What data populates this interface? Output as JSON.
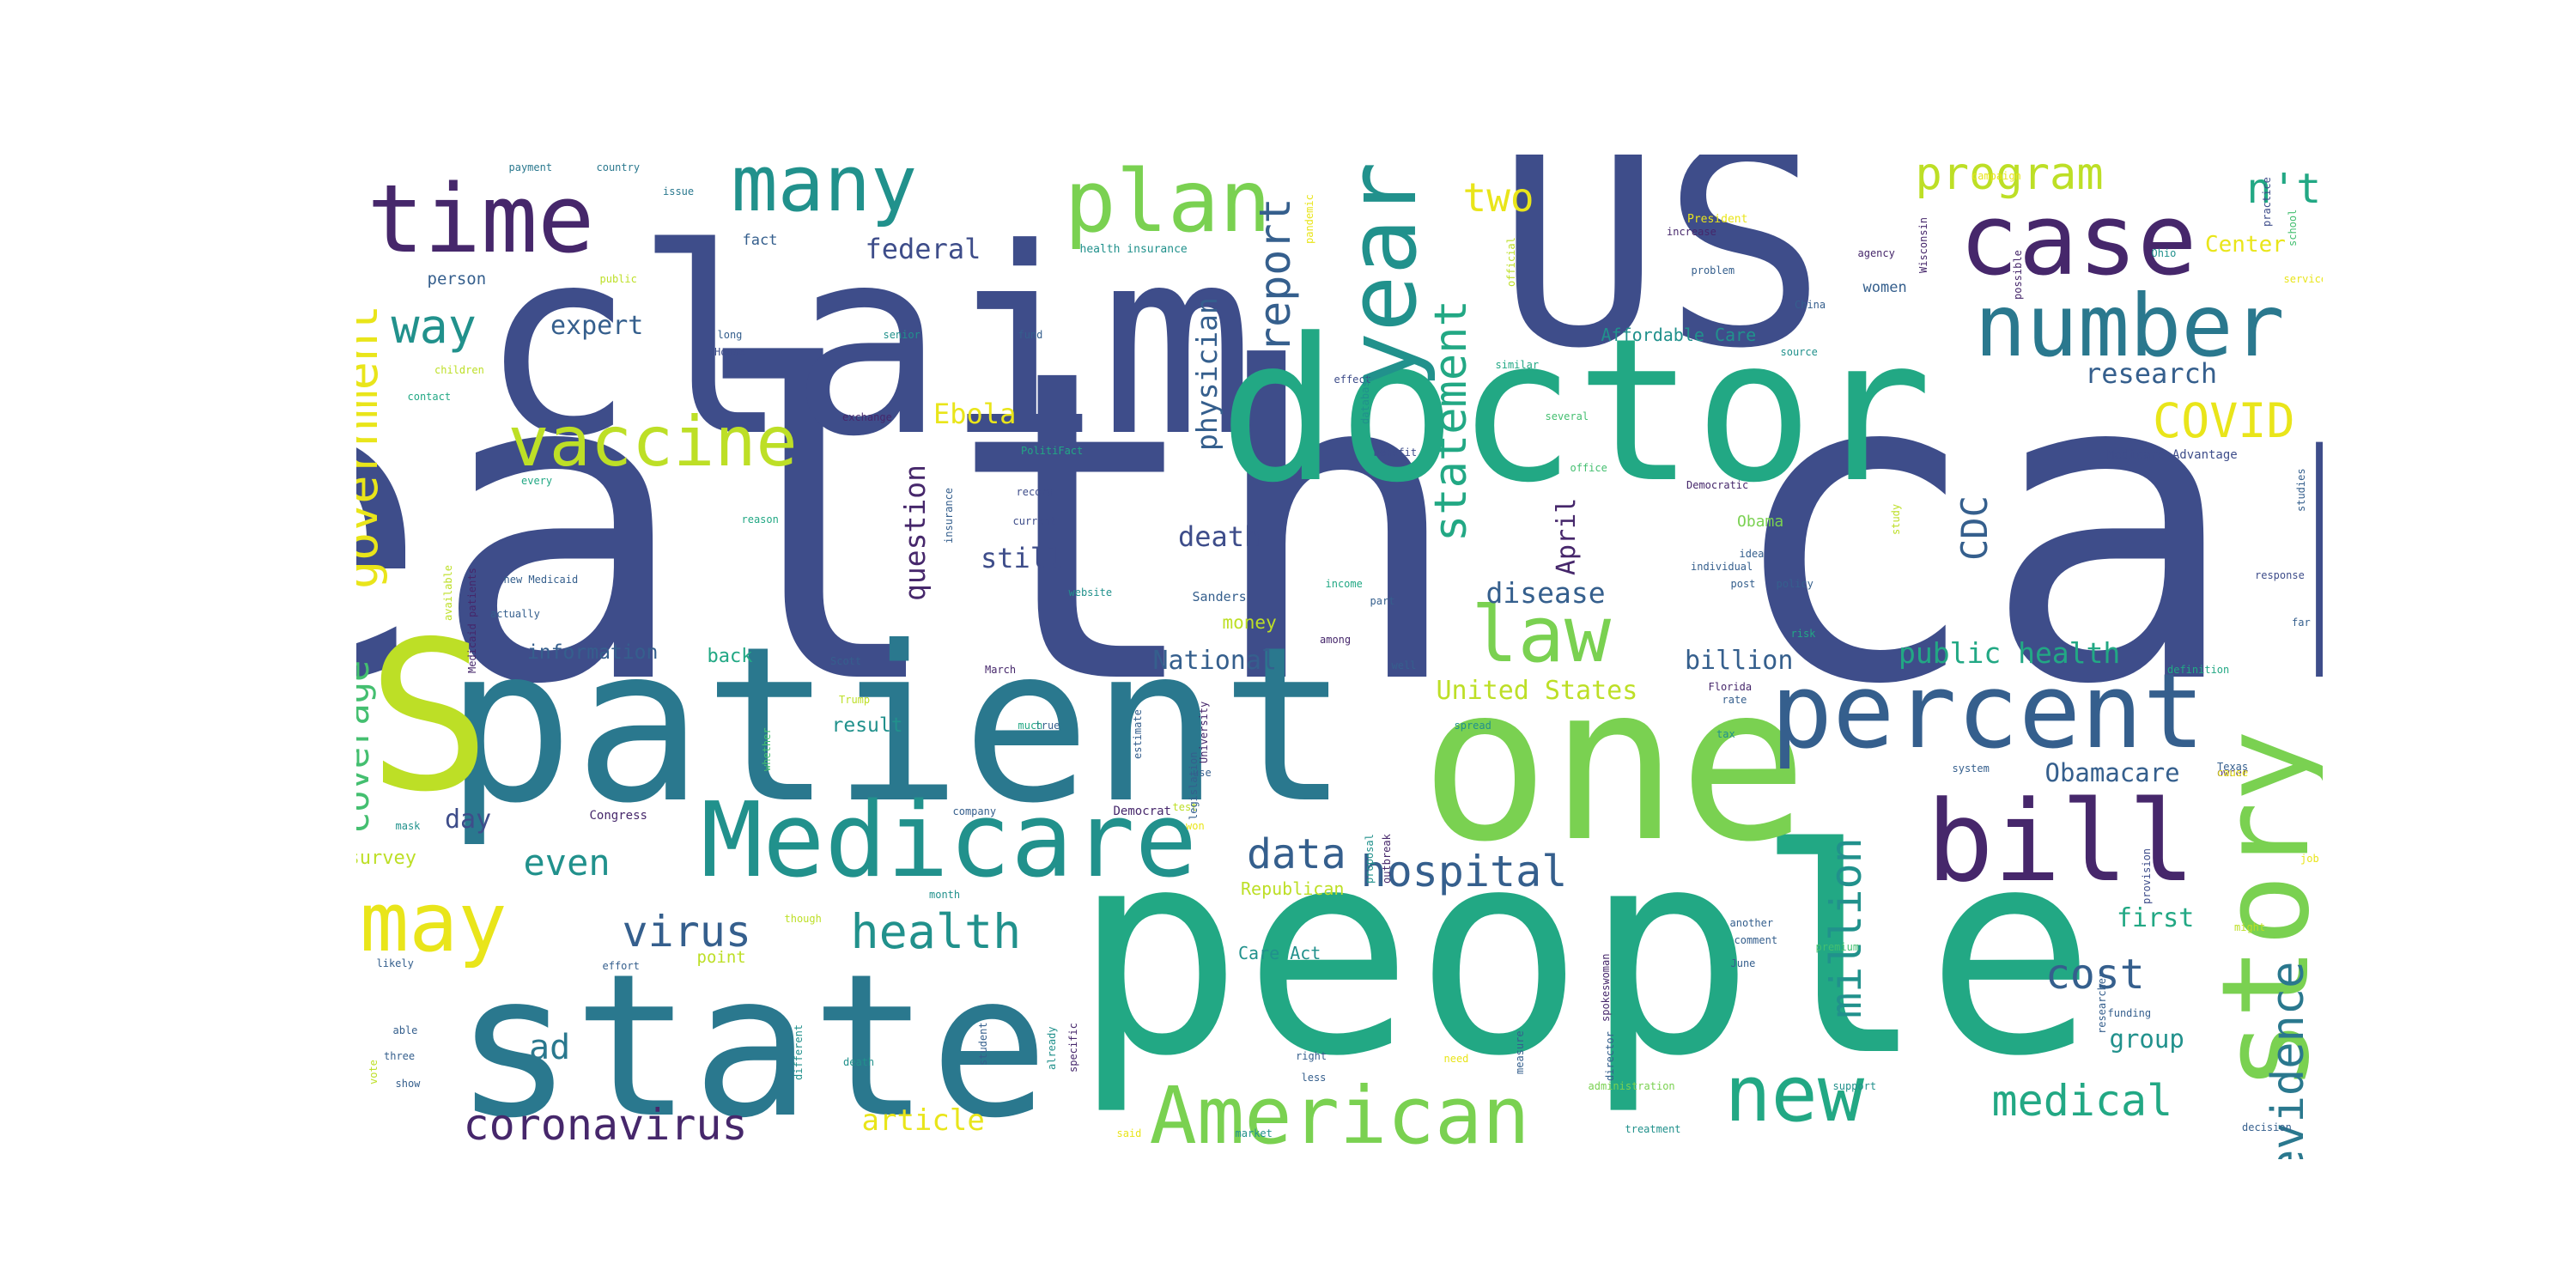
{
  "palette": {
    "dark_purple": "#46276b",
    "indigo": "#3e4d8a",
    "blue": "#355f8d",
    "teal_blue": "#2a788e",
    "teal": "#21918c",
    "green_teal": "#22a884",
    "green": "#44bf70",
    "light_green": "#7ad151",
    "yellow_green": "#bddf26",
    "yellow": "#e9e51a"
  },
  "words": [
    {
      "text": "health care",
      "color": "indigo",
      "weight": 100
    },
    {
      "text": "people",
      "color": "green_teal",
      "weight": 86
    },
    {
      "text": "claim",
      "color": "indigo",
      "weight": 72
    },
    {
      "text": "US",
      "color": "indigo",
      "weight": 70
    },
    {
      "text": "patient",
      "color": "teal_blue",
      "weight": 62
    },
    {
      "text": "one",
      "color": "light_green",
      "weight": 62
    },
    {
      "text": "state",
      "color": "teal_blue",
      "weight": 58
    },
    {
      "text": "doctor",
      "color": "green_teal",
      "weight": 58
    },
    {
      "text": "S",
      "color": "yellow_green",
      "weight": 56
    },
    {
      "text": "Medicare",
      "color": "teal",
      "weight": 40
    },
    {
      "text": "percent",
      "color": "blue",
      "weight": 38
    },
    {
      "text": "bill",
      "color": "dark_purple",
      "weight": 38
    },
    {
      "text": "story",
      "color": "light_green",
      "weight": 36
    },
    {
      "text": "time",
      "color": "dark_purple",
      "weight": 34
    },
    {
      "text": "year",
      "color": "teal",
      "weight": 34
    },
    {
      "text": "case",
      "color": "dark_purple",
      "weight": 32
    },
    {
      "text": "plan",
      "color": "light_green",
      "weight": 30
    },
    {
      "text": "many",
      "color": "teal",
      "weight": 28
    },
    {
      "text": "number",
      "color": "teal_blue",
      "weight": 28
    },
    {
      "text": "American",
      "color": "light_green",
      "weight": 27
    },
    {
      "text": "vaccine",
      "color": "yellow_green",
      "weight": 27
    },
    {
      "text": "law",
      "color": "light_green",
      "weight": 27
    },
    {
      "text": "may",
      "color": "yellow",
      "weight": 27
    },
    {
      "text": "new",
      "color": "green_teal",
      "weight": 27
    },
    {
      "text": "government",
      "color": "yellow",
      "weight": 18
    },
    {
      "text": "evidence",
      "color": "teal_blue",
      "weight": 18
    },
    {
      "text": "statement",
      "color": "green_teal",
      "weight": 18
    },
    {
      "text": "million",
      "color": "teal",
      "weight": 18
    },
    {
      "text": "coronavirus",
      "color": "dark_purple",
      "weight": 16
    },
    {
      "text": "report",
      "color": "blue",
      "weight": 16
    },
    {
      "text": "health",
      "color": "teal",
      "weight": 16
    },
    {
      "text": "hospital",
      "color": "blue",
      "weight": 16
    },
    {
      "text": "medical",
      "color": "green_teal",
      "weight": 16
    },
    {
      "text": "COVID",
      "color": "yellow",
      "weight": 15
    },
    {
      "text": "program",
      "color": "yellow_green",
      "weight": 15
    },
    {
      "text": "virus",
      "color": "blue",
      "weight": 15
    },
    {
      "text": "data",
      "color": "blue",
      "weight": 15
    },
    {
      "text": "way",
      "color": "teal",
      "weight": 15
    },
    {
      "text": "cost",
      "color": "blue",
      "weight": 15
    },
    {
      "text": "coverage",
      "color": "green",
      "weight": 15
    },
    {
      "text": "n't",
      "color": "green_teal",
      "weight": 14
    },
    {
      "text": "two",
      "color": "yellow",
      "weight": 14
    },
    {
      "text": "CDC",
      "color": "blue",
      "weight": 14
    },
    {
      "text": "even",
      "color": "teal",
      "weight": 12
    },
    {
      "text": "ad",
      "color": "teal_blue",
      "weight": 12
    },
    {
      "text": "article",
      "color": "yellow",
      "weight": 10
    },
    {
      "text": "public health",
      "color": "green_teal",
      "weight": 10
    },
    {
      "text": "research",
      "color": "blue",
      "weight": 10
    },
    {
      "text": "physician",
      "color": "blue",
      "weight": 10
    },
    {
      "text": "question",
      "color": "dark_purple",
      "weight": 10
    },
    {
      "text": "disease",
      "color": "blue",
      "weight": 10
    },
    {
      "text": "death",
      "color": "indigo",
      "weight": 10
    },
    {
      "text": "still",
      "color": "indigo",
      "weight": 10
    },
    {
      "text": "federal",
      "color": "indigo",
      "weight": 10
    },
    {
      "text": "expert",
      "color": "blue",
      "weight": 10
    },
    {
      "text": "day",
      "color": "indigo",
      "weight": 10
    },
    {
      "text": "Obamacare",
      "color": "blue",
      "weight": 10
    },
    {
      "text": "first",
      "color": "green_teal",
      "weight": 10
    },
    {
      "text": "billion",
      "color": "blue",
      "weight": 10
    },
    {
      "text": "United States",
      "color": "yellow_green",
      "weight": 10
    },
    {
      "text": "National",
      "color": "blue",
      "weight": 10
    },
    {
      "text": "group",
      "color": "teal",
      "weight": 10
    },
    {
      "text": "Ebola",
      "color": "yellow",
      "weight": 10
    },
    {
      "text": "April",
      "color": "dark_purple",
      "weight": 10
    },
    {
      "text": "Center",
      "color": "yellow",
      "weight": 9
    },
    {
      "text": "survey",
      "color": "yellow_green",
      "weight": 8
    },
    {
      "text": "information",
      "color": "blue",
      "weight": 8
    },
    {
      "text": "back",
      "color": "green_teal",
      "weight": 8
    },
    {
      "text": "result",
      "color": "teal",
      "weight": 8
    },
    {
      "text": "money",
      "color": "yellow_green",
      "weight": 8
    },
    {
      "text": "Care Act",
      "color": "teal",
      "weight": 7
    },
    {
      "text": "Affordable Care",
      "color": "teal",
      "weight": 7
    },
    {
      "text": "Republican",
      "color": "yellow_green",
      "weight": 7
    },
    {
      "text": "point",
      "color": "yellow_green",
      "weight": 7
    },
    {
      "text": "women",
      "color": "blue",
      "weight": 6
    },
    {
      "text": "fact",
      "color": "blue",
      "weight": 6
    },
    {
      "text": "person",
      "color": "blue",
      "weight": 6
    },
    {
      "text": "Obama",
      "color": "light_green",
      "weight": 6
    },
    {
      "text": "Sanders",
      "color": "blue",
      "weight": 5
    },
    {
      "text": "Congress",
      "color": "dark_purple",
      "weight": 5
    },
    {
      "text": "Democrat",
      "color": "dark_purple",
      "weight": 5
    },
    {
      "text": "Medicare Advantage",
      "color": "indigo",
      "weight": 5
    },
    {
      "text": "health insurance",
      "color": "teal",
      "weight": 5
    },
    {
      "text": "President",
      "color": "yellow",
      "weight": 5
    },
    {
      "text": "Florida",
      "color": "dark_purple",
      "weight": 5
    },
    {
      "text": "children",
      "color": "yellow_green",
      "weight": 5
    },
    {
      "text": "exchange",
      "color": "dark_purple",
      "weight": 5
    },
    {
      "text": "agency",
      "color": "dark_purple",
      "weight": 5
    },
    {
      "text": "increase",
      "color": "dark_purple",
      "weight": 5
    },
    {
      "text": "public",
      "color": "yellow_green",
      "weight": 5
    },
    {
      "text": "payment",
      "color": "teal_blue",
      "weight": 5
    },
    {
      "text": "country",
      "color": "teal_blue",
      "weight": 5
    },
    {
      "text": "issue",
      "color": "teal_blue",
      "weight": 5
    },
    {
      "text": "campaign",
      "color": "yellow",
      "weight": 5
    },
    {
      "text": "March",
      "color": "dark_purple",
      "weight": 5
    },
    {
      "text": "Scott",
      "color": "blue",
      "weight": 5
    },
    {
      "text": "risk",
      "color": "green_teal",
      "weight": 5
    },
    {
      "text": "premium",
      "color": "green",
      "weight": 5
    },
    {
      "text": "funding",
      "color": "blue",
      "weight": 5
    },
    {
      "text": "director",
      "color": "blue",
      "weight": 5
    },
    {
      "text": "Texas",
      "color": "blue",
      "weight": 5
    },
    {
      "text": "problem",
      "color": "blue",
      "weight": 5
    },
    {
      "text": "system",
      "color": "blue",
      "weight": 5
    },
    {
      "text": "policy",
      "color": "blue",
      "weight": 5
    },
    {
      "text": "idea",
      "color": "blue",
      "weight": 5
    },
    {
      "text": "support",
      "color": "teal",
      "weight": 5
    },
    {
      "text": "spread",
      "color": "teal",
      "weight": 5
    },
    {
      "text": "company",
      "color": "blue",
      "weight": 5
    },
    {
      "text": "reason",
      "color": "green_teal",
      "weight": 5
    },
    {
      "text": "every",
      "color": "green_teal",
      "weight": 5
    },
    {
      "text": "available",
      "color": "yellow_green",
      "weight": 5
    },
    {
      "text": "Trump",
      "color": "yellow_green",
      "weight": 5
    },
    {
      "text": "June",
      "color": "blue",
      "weight": 5
    },
    {
      "text": "treatment",
      "color": "teal",
      "weight": 5
    },
    {
      "text": "decision",
      "color": "blue",
      "weight": 5
    },
    {
      "text": "benefit",
      "color": "indigo",
      "weight": 5
    },
    {
      "text": "record",
      "color": "indigo",
      "weight": 5
    },
    {
      "text": "response",
      "color": "indigo",
      "weight": 5
    },
    {
      "text": "current",
      "color": "indigo",
      "weight": 5
    },
    {
      "text": "website",
      "color": "teal",
      "weight": 5
    },
    {
      "text": "PolitiFact",
      "color": "green_teal",
      "weight": 5
    },
    {
      "text": "effect",
      "color": "indigo",
      "weight": 5
    },
    {
      "text": "another",
      "color": "blue",
      "weight": 5
    },
    {
      "text": "comment",
      "color": "blue",
      "weight": 5
    },
    {
      "text": "senior",
      "color": "teal",
      "weight": 5
    },
    {
      "text": "House",
      "color": "indigo",
      "weight": 5
    },
    {
      "text": "long",
      "color": "blue",
      "weight": 5
    },
    {
      "text": "fund",
      "color": "blue",
      "weight": 5
    },
    {
      "text": "contact",
      "color": "green_teal",
      "weight": 5
    },
    {
      "text": "right",
      "color": "blue",
      "weight": 5
    },
    {
      "text": "less",
      "color": "blue",
      "weight": 5
    },
    {
      "text": "need",
      "color": "yellow",
      "weight": 5
    },
    {
      "text": "able",
      "color": "blue",
      "weight": 5
    },
    {
      "text": "three",
      "color": "blue",
      "weight": 5
    },
    {
      "text": "likely",
      "color": "blue",
      "weight": 5
    },
    {
      "text": "effort",
      "color": "blue",
      "weight": 5
    },
    {
      "text": "study",
      "color": "yellow_green",
      "weight": 5
    },
    {
      "text": "death",
      "color": "teal",
      "weight": 5
    },
    {
      "text": "though",
      "color": "yellow_green",
      "weight": 5
    },
    {
      "text": "mask",
      "color": "teal",
      "weight": 5
    },
    {
      "text": "show",
      "color": "blue",
      "weight": 5
    },
    {
      "text": "tax",
      "color": "teal",
      "weight": 5
    },
    {
      "text": "job",
      "color": "yellow",
      "weight": 5
    },
    {
      "text": "researcher",
      "color": "blue",
      "weight": 5
    },
    {
      "text": "similar",
      "color": "green_teal",
      "weight": 5
    },
    {
      "text": "Ohio",
      "color": "teal",
      "weight": 5
    },
    {
      "text": "China",
      "color": "blue",
      "weight": 5
    },
    {
      "text": "source",
      "color": "teal",
      "weight": 5
    },
    {
      "text": "service",
      "color": "yellow",
      "weight": 5
    },
    {
      "text": "several",
      "color": "green",
      "weight": 5
    },
    {
      "text": "office",
      "color": "green",
      "weight": 5
    },
    {
      "text": "income",
      "color": "green_teal",
      "weight": 5
    },
    {
      "text": "among",
      "color": "dark_purple",
      "weight": 5
    },
    {
      "text": "part",
      "color": "blue",
      "weight": 5
    },
    {
      "text": "well",
      "color": "blue",
      "weight": 5
    },
    {
      "text": "rate",
      "color": "blue",
      "weight": 5
    },
    {
      "text": "post",
      "color": "blue",
      "weight": 5
    },
    {
      "text": "individual",
      "color": "blue",
      "weight": 5
    },
    {
      "text": "far",
      "color": "blue",
      "weight": 5
    },
    {
      "text": "definition",
      "color": "green_teal",
      "weight": 5
    },
    {
      "text": "use",
      "color": "blue",
      "weight": 5
    },
    {
      "text": "true",
      "color": "blue",
      "weight": 5
    },
    {
      "text": "much",
      "color": "green_teal",
      "weight": 5
    },
    {
      "text": "test",
      "color": "yellow_green",
      "weight": 5
    },
    {
      "text": "market",
      "color": "teal",
      "weight": 5
    },
    {
      "text": "won",
      "color": "yellow",
      "weight": 4
    },
    {
      "text": "month",
      "color": "teal",
      "weight": 4
    },
    {
      "text": "actually",
      "color": "blue",
      "weight": 4
    },
    {
      "text": "new Medicaid",
      "color": "blue",
      "weight": 4
    },
    {
      "text": "said",
      "color": "yellow",
      "weight": 4
    },
    {
      "text": "might",
      "color": "yellow_green",
      "weight": 4
    },
    {
      "text": "vote",
      "color": "yellow_green",
      "weight": 4
    },
    {
      "text": "Medicaid patients",
      "color": "dark_purple",
      "weight": 4
    },
    {
      "text": "whether",
      "color": "green",
      "weight": 4
    },
    {
      "text": "insurance",
      "color": "blue",
      "weight": 4
    },
    {
      "text": "database",
      "color": "teal",
      "weight": 4
    },
    {
      "text": "legislation",
      "color": "blue",
      "weight": 4
    },
    {
      "text": "University",
      "color": "dark_purple",
      "weight": 4
    },
    {
      "text": "outbreak",
      "color": "dark_purple",
      "weight": 4
    },
    {
      "text": "proposal",
      "color": "teal",
      "weight": 4
    },
    {
      "text": "specific",
      "color": "dark_purple",
      "weight": 4
    },
    {
      "text": "already",
      "color": "teal",
      "weight": 4
    },
    {
      "text": "different",
      "color": "teal",
      "weight": 4
    },
    {
      "text": "estimate",
      "color": "blue",
      "weight": 4
    },
    {
      "text": "possible",
      "color": "dark_purple",
      "weight": 4
    },
    {
      "text": "Wisconsin",
      "color": "dark_purple",
      "weight": 4
    },
    {
      "text": "measure",
      "color": "blue",
      "weight": 4
    },
    {
      "text": "student",
      "color": "blue",
      "weight": 4
    },
    {
      "text": "pandemic",
      "color": "yellow",
      "weight": 4
    },
    {
      "text": "official",
      "color": "yellow_green",
      "weight": 4
    },
    {
      "text": "school",
      "color": "green",
      "weight": 4
    },
    {
      "text": "studies",
      "color": "blue",
      "weight": 4
    },
    {
      "text": "practice",
      "color": "indigo",
      "weight": 4
    },
    {
      "text": "provision",
      "color": "indigo",
      "weight": 4
    },
    {
      "text": "spokeswoman",
      "color": "dark_purple",
      "weight": 4
    },
    {
      "text": "administration",
      "color": "light_green",
      "weight": 4
    },
    {
      "text": "Democratic",
      "color": "dark_purple",
      "weight": 4
    },
    {
      "text": "owner",
      "color": "dark_purple",
      "weight": 4
    },
    {
      "text": "cause",
      "color": "yellow",
      "weight": 4
    }
  ]
}
